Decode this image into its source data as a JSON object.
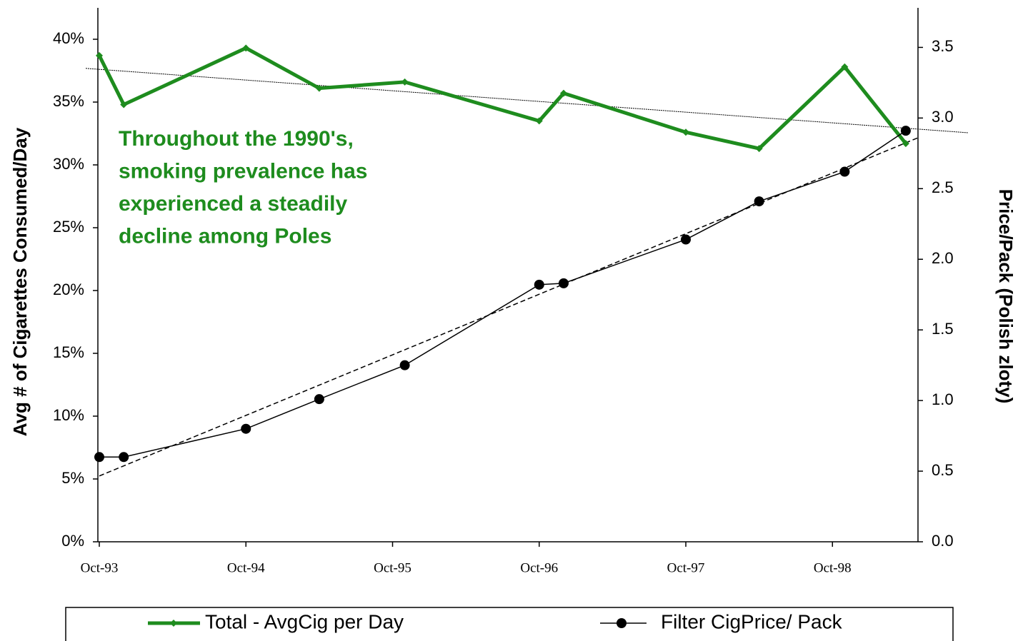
{
  "chart_data": {
    "type": "line",
    "y_label": "Avg # of Cigarettes Consumed/Day",
    "y2_label": "Price/Pack (Polish zloty)",
    "annotation": [
      "Throughout the 1990's,",
      "smoking prevalence has",
      "experienced a steadily",
      "decline among Poles"
    ],
    "annotation_color": "#1e8c1e",
    "x": [
      "1993-10",
      "1993-12",
      "1994-10",
      "1995-04",
      "1995-11",
      "1996-10",
      "1996-12",
      "1997-10",
      "1998-04",
      "1998-11",
      "1999-04"
    ],
    "xlim": [
      "1993-10",
      "1999-05"
    ],
    "xticks": [
      {
        "value": "1993-10",
        "label": "Oct-93"
      },
      {
        "value": "1994-10",
        "label": "Oct-94"
      },
      {
        "value": "1995-10",
        "label": "Oct-95"
      },
      {
        "value": "1996-10",
        "label": "Oct-96"
      },
      {
        "value": "1997-10",
        "label": "Oct-97"
      },
      {
        "value": "1998-10",
        "label": "Oct-98"
      }
    ],
    "ylim": [
      0,
      42.5
    ],
    "yticks": [
      {
        "value": 0,
        "label": "0%"
      },
      {
        "value": 5,
        "label": "5%"
      },
      {
        "value": 10,
        "label": "10%"
      },
      {
        "value": 15,
        "label": "15%"
      },
      {
        "value": 20,
        "label": "20%"
      },
      {
        "value": 25,
        "label": "25%"
      },
      {
        "value": 30,
        "label": "30%"
      },
      {
        "value": 35,
        "label": "35%"
      },
      {
        "value": 40,
        "label": "40%"
      }
    ],
    "y2lim": [
      0,
      3.78
    ],
    "y2ticks": [
      {
        "value": 0,
        "label": "0.0"
      },
      0.5,
      {
        "value": 1,
        "label": "1.0"
      },
      1.5,
      {
        "value": 2,
        "label": "2.0"
      },
      2.5,
      {
        "value": 3,
        "label": "3.0"
      },
      3.5
    ],
    "series": [
      {
        "name": "Total - AvgCig per Day",
        "color": "#1e8c1e",
        "marker": "diamond",
        "trendline": "dotted",
        "values": [
          38.7,
          34.8,
          39.3,
          36.1,
          36.6,
          33.5,
          35.7,
          32.6,
          31.3,
          37.8,
          31.7
        ]
      },
      {
        "name": "Filter CigPrice/ Pack",
        "color": "#000000",
        "marker": "circle",
        "trendline": "dashed",
        "axis": "y2",
        "values": [
          0.6,
          0.6,
          0.8,
          1.01,
          1.25,
          1.82,
          1.83,
          2.14,
          2.41,
          2.62,
          2.91
        ]
      }
    ],
    "legend": "bottom"
  }
}
